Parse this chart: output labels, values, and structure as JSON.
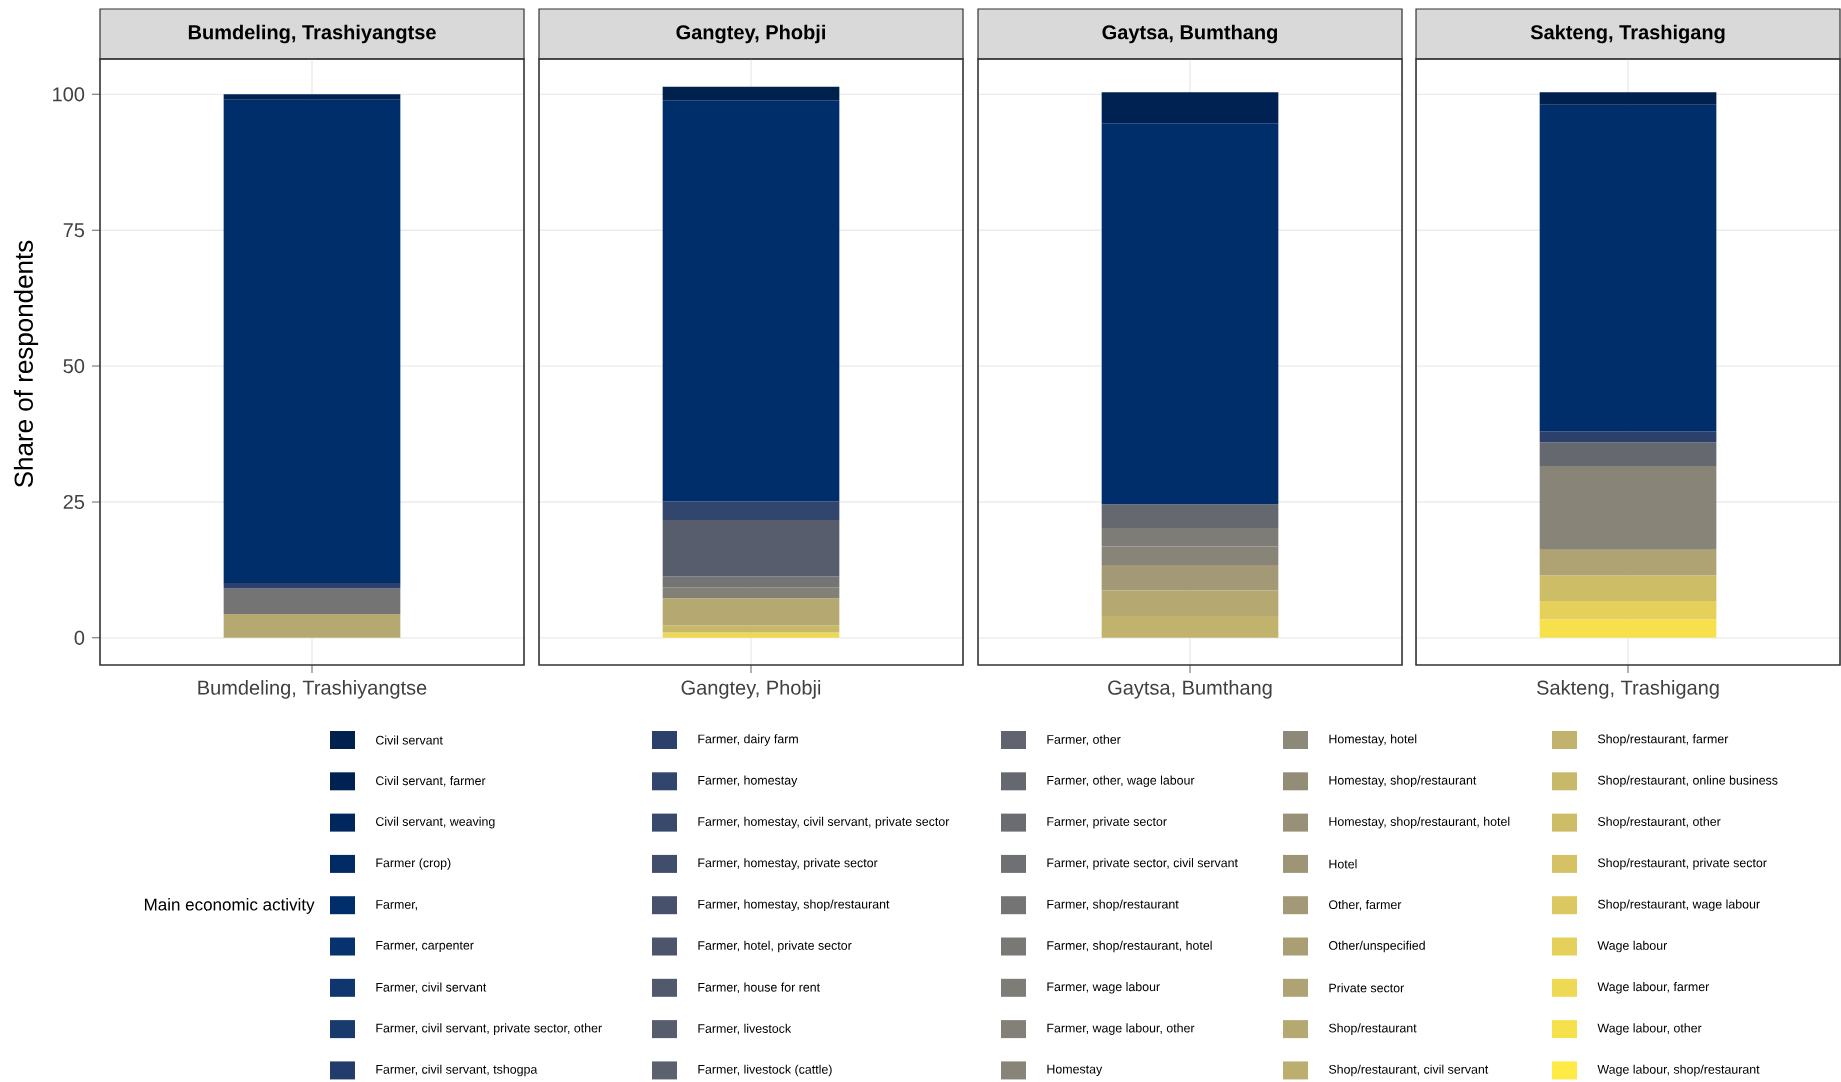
{
  "chart_data": {
    "type": "bar",
    "stacked": true,
    "ylabel": "Share of respondents",
    "legend_title": "Main economic activity",
    "legend": "bottom",
    "grid": true,
    "categories": [
      "Bumdeling, Trashiyangtse",
      "Gangtey, Phobji",
      "Gaytsa, Bumthang",
      "Sakteng, Trashigang"
    ],
    "ylim": [
      -5,
      106.5
    ],
    "yticks": [
      0,
      25,
      50,
      75,
      100
    ],
    "series": [
      {
        "name": "Wage labour, shop/restaurant",
        "color": "#ffea46",
        "values": [
          null,
          null,
          null,
          null
        ]
      },
      {
        "name": "Wage labour, other",
        "color": "#f6e14d",
        "values": [
          null,
          null,
          null,
          3.4
        ]
      },
      {
        "name": "Wage labour, farmer",
        "color": "#edd953",
        "values": [
          null,
          1.0,
          null,
          null
        ]
      },
      {
        "name": "Wage labour",
        "color": "#e4d05a",
        "values": [
          null,
          null,
          null,
          3.4
        ]
      },
      {
        "name": "Shop/restaurant, wage labour",
        "color": "#dcc860",
        "values": [
          null,
          null,
          null,
          null
        ]
      },
      {
        "name": "Shop/restaurant, private sector",
        "color": "#d4c265",
        "values": [
          null,
          null,
          null,
          null
        ]
      },
      {
        "name": "Shop/restaurant, other",
        "color": "#cebd67",
        "values": [
          null,
          null,
          null,
          4.7
        ]
      },
      {
        "name": "Shop/restaurant, online business",
        "color": "#c7b86a",
        "values": [
          null,
          1.3,
          null,
          null
        ]
      },
      {
        "name": "Shop/restaurant, farmer",
        "color": "#c1b36d",
        "values": [
          null,
          null,
          4.0,
          null
        ]
      },
      {
        "name": "Shop/restaurant, civil servant",
        "color": "#bbae6f",
        "values": [
          null,
          null,
          null,
          null
        ]
      },
      {
        "name": "Shop/restaurant",
        "color": "#b5a971",
        "values": [
          4.4,
          5.0,
          4.7,
          null
        ]
      },
      {
        "name": "Private sector",
        "color": "#afa373",
        "values": [
          null,
          null,
          null,
          4.7
        ]
      },
      {
        "name": "Other/unspecified",
        "color": "#aa9e74",
        "values": [
          null,
          null,
          null,
          null
        ]
      },
      {
        "name": "Other, farmer",
        "color": "#a49976",
        "values": [
          null,
          null,
          4.7,
          null
        ]
      },
      {
        "name": "Hotel",
        "color": "#9e9576",
        "values": [
          null,
          null,
          null,
          null
        ]
      },
      {
        "name": "Homestay, shop/restaurant, hotel",
        "color": "#999177",
        "values": [
          null,
          null,
          null,
          null
        ]
      },
      {
        "name": "Homestay, shop/restaurant",
        "color": "#938d77",
        "values": [
          null,
          null,
          null,
          null
        ]
      },
      {
        "name": "Homestay, hotel",
        "color": "#8d8978",
        "values": [
          null,
          null,
          null,
          null
        ]
      },
      {
        "name": "Homestay",
        "color": "#888478",
        "values": [
          null,
          null,
          3.4,
          15.4
        ]
      },
      {
        "name": "Farmer, wage labour, other",
        "color": "#838077",
        "values": [
          null,
          2.0,
          null,
          null
        ]
      },
      {
        "name": "Farmer, wage labour",
        "color": "#7e7c76",
        "values": [
          null,
          null,
          3.4,
          null
        ]
      },
      {
        "name": "Farmer, shop/restaurant, hotel",
        "color": "#797875",
        "values": [
          null,
          null,
          null,
          null
        ]
      },
      {
        "name": "Farmer, shop/restaurant",
        "color": "#747474",
        "values": [
          4.7,
          2.0,
          null,
          null
        ]
      },
      {
        "name": "Farmer, private sector, civil servant",
        "color": "#6f7073",
        "values": [
          null,
          null,
          null,
          null
        ]
      },
      {
        "name": "Farmer, private sector",
        "color": "#6a6c71",
        "values": [
          null,
          null,
          null,
          null
        ]
      },
      {
        "name": "Farmer, other, wage labour",
        "color": "#666870",
        "values": [
          null,
          null,
          4.4,
          4.4
        ]
      },
      {
        "name": "Farmer, other",
        "color": "#61646e",
        "values": [
          null,
          null,
          null,
          null
        ]
      },
      {
        "name": "Farmer, livestock (cattle)",
        "color": "#5c616e",
        "values": [
          null,
          null,
          null,
          null
        ]
      },
      {
        "name": "Farmer, livestock",
        "color": "#575d6d",
        "values": [
          null,
          10.4,
          null,
          null
        ]
      },
      {
        "name": "Farmer, house for rent",
        "color": "#51596c",
        "values": [
          null,
          null,
          null,
          null
        ]
      },
      {
        "name": "Farmer, hotel, private sector",
        "color": "#4c556c",
        "values": [
          null,
          null,
          null,
          null
        ]
      },
      {
        "name": "Farmer, homestay, shop/restaurant",
        "color": "#47516b",
        "values": [
          null,
          null,
          null,
          null
        ]
      },
      {
        "name": "Farmer, homestay, private sector",
        "color": "#404d6b",
        "values": [
          null,
          null,
          null,
          null
        ]
      },
      {
        "name": "Farmer, homestay, civil servant, private sector",
        "color": "#39496b",
        "values": [
          null,
          null,
          null,
          null
        ]
      },
      {
        "name": "Farmer, homestay",
        "color": "#32456c",
        "values": [
          null,
          3.4,
          null,
          null
        ]
      },
      {
        "name": "Farmer, dairy farm",
        "color": "#2b416c",
        "values": [
          1.0,
          null,
          null,
          2.0
        ]
      },
      {
        "name": "Farmer, civil servant, tshogpa",
        "color": "#223d6c",
        "values": [
          null,
          null,
          null,
          null
        ]
      },
      {
        "name": "Farmer, civil servant, private sector, other",
        "color": "#193a6d",
        "values": [
          null,
          null,
          null,
          null
        ]
      },
      {
        "name": "Farmer, civil servant",
        "color": "#0f366e",
        "values": [
          null,
          null,
          null,
          null
        ]
      },
      {
        "name": "Farmer, carpenter",
        "color": "#06326f",
        "values": [
          null,
          null,
          null,
          null
        ]
      },
      {
        "name": "Farmer,",
        "color": "#002e6b",
        "values": [
          88.9,
          73.8,
          70.1,
          60.1
        ]
      },
      {
        "name": "Farmer (crop)",
        "color": "#002b64",
        "values": [
          null,
          null,
          null,
          null
        ]
      },
      {
        "name": "Civil servant, weaving",
        "color": "#00275d",
        "values": [
          null,
          null,
          null,
          null
        ]
      },
      {
        "name": "Civil servant, farmer",
        "color": "#002252",
        "values": [
          1.0,
          null,
          5.7,
          null
        ]
      },
      {
        "name": "Civil servant",
        "color": "#00204d",
        "values": [
          null,
          2.5,
          null,
          2.3
        ]
      }
    ]
  }
}
